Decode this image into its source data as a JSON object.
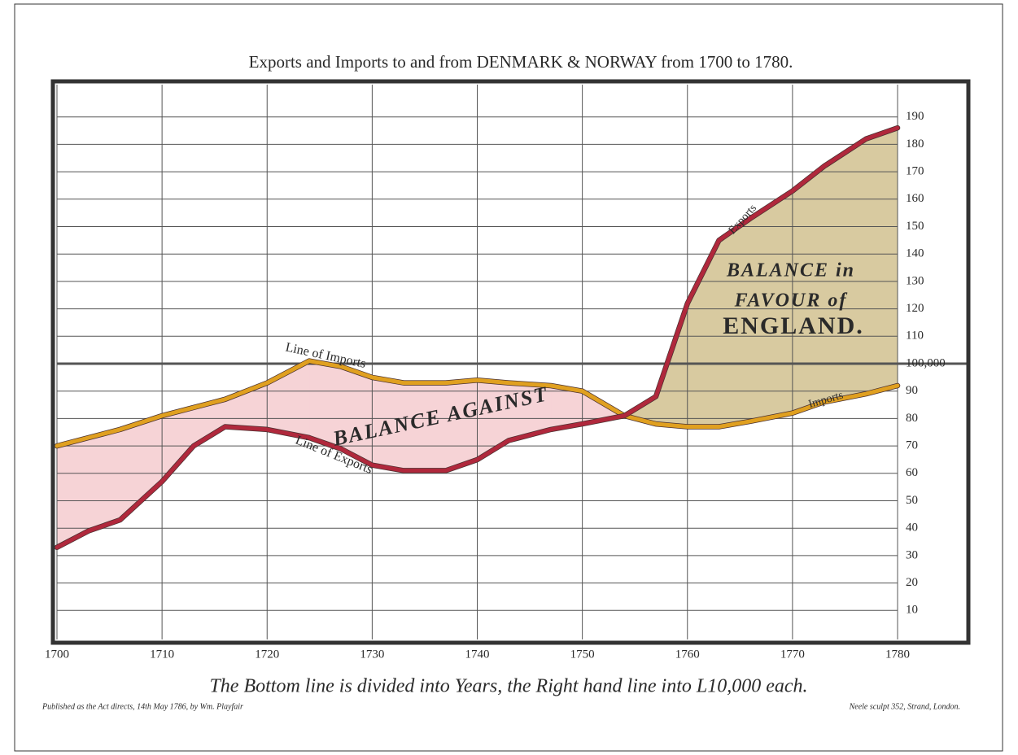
{
  "chart_data": {
    "type": "line",
    "title": "Exports and Imports to and from DENMARK & NORWAY from 1700 to 1780.",
    "x": [
      1700,
      1703,
      1706,
      1710,
      1713,
      1716,
      1720,
      1724,
      1727,
      1730,
      1733,
      1737,
      1740,
      1743,
      1747,
      1750,
      1754,
      1757,
      1760,
      1763,
      1766,
      1770,
      1773,
      1777,
      1780
    ],
    "series": [
      {
        "name": "Imports",
        "color": "#e0a020",
        "values": [
          70,
          73,
          76,
          81,
          84,
          87,
          93,
          101,
          99,
          95,
          93,
          93,
          94,
          93,
          92,
          90,
          81,
          78,
          77,
          77,
          79,
          82,
          86,
          89,
          92
        ]
      },
      {
        "name": "Exports",
        "color": "#b0283c",
        "values": [
          33,
          39,
          43,
          57,
          70,
          77,
          76,
          73,
          69,
          63,
          61,
          61,
          65,
          72,
          76,
          78,
          81,
          88,
          122,
          145,
          153,
          163,
          172,
          182,
          186
        ]
      }
    ],
    "fill_colors": {
      "against": "#f6d3d6",
      "favour": "#d8caa0"
    },
    "xlim": [
      1700,
      1780
    ],
    "xticks": [
      1700,
      1710,
      1720,
      1730,
      1740,
      1750,
      1760,
      1770,
      1780
    ],
    "ylim": [
      0,
      200
    ],
    "yticks": [
      10,
      20,
      30,
      40,
      50,
      60,
      70,
      80,
      90,
      {
        "value": 100,
        "label": "100,000"
      },
      110,
      120,
      130,
      140,
      150,
      160,
      170,
      180,
      190
    ],
    "grid": true,
    "annotations": [
      "Line of Imports",
      "Line of Exports",
      "BALANCE AGAINST",
      "BALANCE in",
      "FAVOUR of",
      "ENGLAND."
    ],
    "caption": "The Bottom line is divided into Years, the Right hand line into L10,000 each.",
    "publisher": "Published as the Act directs, 14th May 1786, by Wm. Playfair",
    "engraver": "Neele sculpt 352, Strand, London."
  }
}
